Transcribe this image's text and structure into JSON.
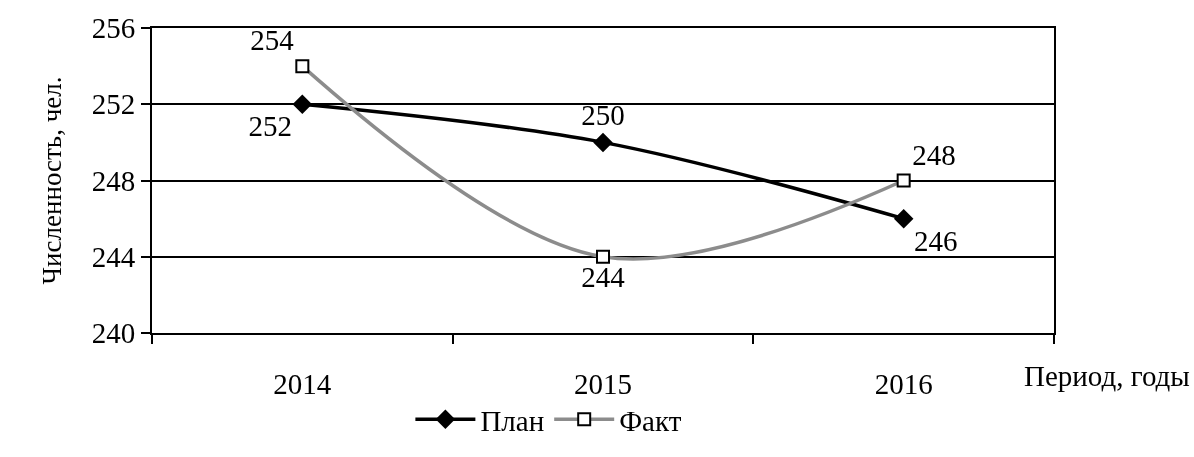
{
  "chart_data": {
    "type": "line",
    "xlabel": "Период, годы",
    "ylabel": "Численность, чел.",
    "categories": [
      "2014",
      "2015",
      "2016"
    ],
    "series": [
      {
        "name": "План",
        "color": "#000000",
        "values": [
          252,
          250,
          246
        ],
        "marker": "diamond"
      },
      {
        "name": "Факт",
        "color": "#8c8c8c",
        "values": [
          254,
          244,
          248
        ],
        "marker": "square"
      }
    ],
    "ylim": [
      240,
      256
    ],
    "yticks": [
      240,
      244,
      248,
      252,
      256
    ],
    "grid": "y",
    "legend": "bottom",
    "data_labels": true,
    "line_style": "solid"
  }
}
